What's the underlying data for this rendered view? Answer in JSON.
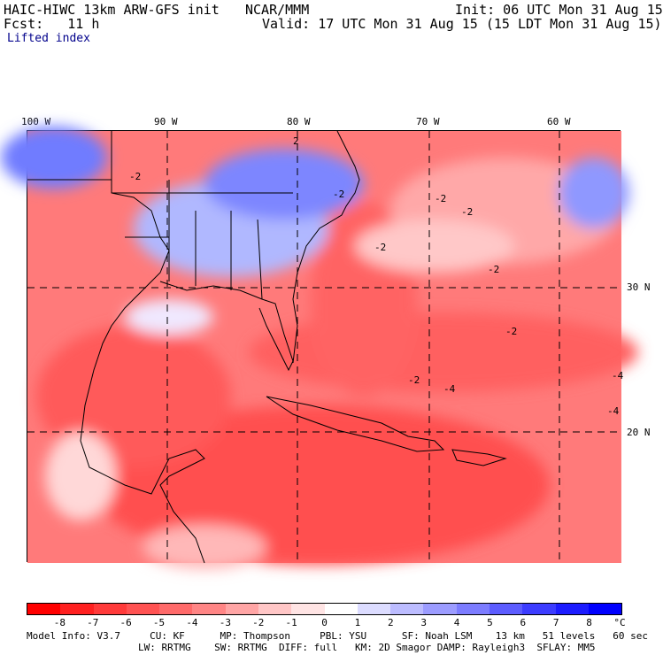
{
  "header": {
    "model": "HAIC-HIWC 13km ARW-GFS init",
    "org": "NCAR/MMM",
    "init": "Init: 06 UTC Mon 31 Aug 15",
    "fcst": "Fcst:   11 h",
    "valid": "Valid: 17 UTC Mon 31 Aug 15 (15 LDT Mon 31 Aug 15)",
    "field": "Lifted index"
  },
  "map": {
    "lon_labels": [
      "100 W",
      "90 W",
      "80 W",
      "70 W",
      "60 W"
    ],
    "lat_labels": [
      "30 N",
      "20 N"
    ],
    "contour_labels": [
      "-2",
      "-2",
      "-2",
      "-2",
      "-2",
      "-2",
      "-4",
      "-4",
      "-4",
      "-2",
      "2",
      "-2"
    ]
  },
  "colorbar": {
    "ticks": [
      "-8",
      "-7",
      "-6",
      "-5",
      "-4",
      "-3",
      "-2",
      "-1",
      "0",
      "1",
      "2",
      "3",
      "4",
      "5",
      "6",
      "7",
      "8"
    ],
    "unit": "°C",
    "colors": [
      "#ff0000",
      "#ff2020",
      "#ff3a3a",
      "#ff5252",
      "#ff6a6a",
      "#ff8585",
      "#ffa5a5",
      "#ffc6c6",
      "#ffe4e4",
      "#ffffff",
      "#dcdcff",
      "#bcbcff",
      "#9c9cff",
      "#7c7cff",
      "#5c5cff",
      "#3c3cff",
      "#1c1cff",
      "#0000ff"
    ]
  },
  "footer": {
    "line1": "Model Info: V3.7     CU: KF      MP: Thompson     PBL: YSU      SF: Noah LSM    13 km   51 levels   60 sec",
    "line2": "LW: RRTMG    SW: RRTMG  DIFF: full   KM: 2D Smagor DAMP: Rayleigh3  SFLAY: MM5"
  }
}
